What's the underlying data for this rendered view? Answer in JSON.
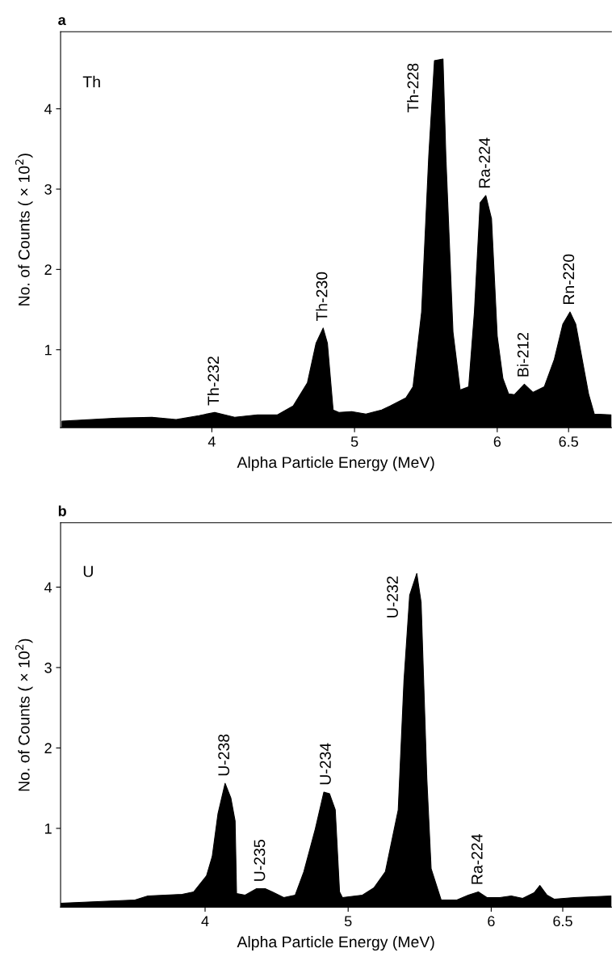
{
  "chart_data": [
    {
      "type": "area",
      "title": "a",
      "xlabel": "Alpha Particle Energy (MeV)",
      "ylabel": "No. of Counts ( × 10$^{2}$)",
      "x": [
        2.95,
        3.34,
        3.58,
        3.75,
        3.91,
        4.02,
        4.16,
        4.32,
        4.46,
        4.57,
        4.67,
        4.73,
        4.78,
        4.81,
        4.85,
        4.89,
        4.98,
        5.08,
        5.19,
        5.25,
        5.36,
        5.41,
        5.47,
        5.52,
        5.56,
        5.62,
        5.64,
        5.69,
        5.74,
        5.8,
        5.84,
        5.88,
        5.92,
        5.96,
        6.0,
        6.04,
        6.08,
        6.12,
        6.19,
        6.25,
        6.33,
        6.4,
        6.46,
        6.51,
        6.55,
        6.61,
        6.64,
        6.68,
        6.8
      ],
      "series": [
        {
          "color": "#000000",
          "values": [
            0.11,
            0.15,
            0.16,
            0.13,
            0.18,
            0.22,
            0.16,
            0.19,
            0.19,
            0.3,
            0.59,
            1.08,
            1.27,
            1.08,
            0.25,
            0.22,
            0.23,
            0.2,
            0.25,
            0.3,
            0.4,
            0.54,
            1.47,
            3.41,
            4.6,
            4.62,
            3.41,
            1.22,
            0.5,
            0.54,
            1.47,
            2.83,
            2.92,
            2.63,
            1.17,
            0.64,
            0.45,
            0.44,
            0.57,
            0.47,
            0.54,
            0.88,
            1.32,
            1.47,
            1.32,
            0.74,
            0.45,
            0.2,
            0.19
          ]
        }
      ],
      "xlim": [
        2.94,
        6.8
      ],
      "ylim": [
        0.03,
        4.96
      ],
      "xticks": [
        4,
        5,
        6,
        6.5
      ],
      "yticks": [
        1,
        2,
        3,
        4
      ],
      "annotations": [
        "Th",
        {
          "text": "Th-232",
          "x": 4.02,
          "y": 0.22
        },
        {
          "text": "Th-230",
          "x": 4.78,
          "y": 1.27
        },
        {
          "text": "Th-228",
          "x": 5.58,
          "y": 4.6
        },
        {
          "text": "Ra-224",
          "x": 5.92,
          "y": 2.92
        },
        {
          "text": "Bi-212",
          "x": 6.19,
          "y": 0.57
        },
        {
          "text": "Rn-220",
          "x": 6.51,
          "y": 1.47
        }
      ]
    },
    {
      "type": "area",
      "title": "b",
      "xlabel": "Alpha Particle Energy (MeV)",
      "ylabel": "No. of Counts ( × 10$^{2}$)",
      "x": [
        2.99,
        3.51,
        3.6,
        3.84,
        3.92,
        4.01,
        4.05,
        4.09,
        4.14,
        4.18,
        4.21,
        4.22,
        4.28,
        4.36,
        4.42,
        4.47,
        4.55,
        4.63,
        4.69,
        4.77,
        4.83,
        4.87,
        4.91,
        4.94,
        4.96,
        5.1,
        5.18,
        5.26,
        5.35,
        5.39,
        5.43,
        5.48,
        5.51,
        5.55,
        5.58,
        5.65,
        5.76,
        5.84,
        5.91,
        5.97,
        6.06,
        6.14,
        6.22,
        6.3,
        6.34,
        6.39,
        6.44,
        6.58,
        6.84
      ],
      "series": [
        {
          "color": "#000000",
          "values": [
            0.07,
            0.11,
            0.16,
            0.18,
            0.21,
            0.41,
            0.65,
            1.18,
            1.56,
            1.38,
            1.09,
            0.19,
            0.17,
            0.25,
            0.25,
            0.21,
            0.14,
            0.17,
            0.46,
            0.99,
            1.45,
            1.43,
            1.23,
            0.21,
            0.14,
            0.17,
            0.26,
            0.46,
            1.23,
            2.83,
            3.9,
            4.17,
            3.81,
            1.62,
            0.5,
            0.11,
            0.11,
            0.17,
            0.21,
            0.14,
            0.14,
            0.16,
            0.13,
            0.2,
            0.29,
            0.17,
            0.12,
            0.14,
            0.16
          ]
        }
      ],
      "xlim": [
        2.99,
        6.84
      ],
      "ylim": [
        0.02,
        4.8
      ],
      "xticks": [
        4,
        5,
        6,
        6.5
      ],
      "yticks": [
        1,
        2,
        3,
        4
      ],
      "annotations": [
        "U",
        {
          "text": "U-238",
          "x": 4.14,
          "y": 1.56
        },
        {
          "text": "U-235",
          "x": 4.39,
          "y": 0.25
        },
        {
          "text": "U-234",
          "x": 4.85,
          "y": 1.45
        },
        {
          "text": "U-232",
          "x": 5.48,
          "y": 4.17
        },
        {
          "text": "Ra-224",
          "x": 5.91,
          "y": 0.21
        }
      ]
    }
  ]
}
